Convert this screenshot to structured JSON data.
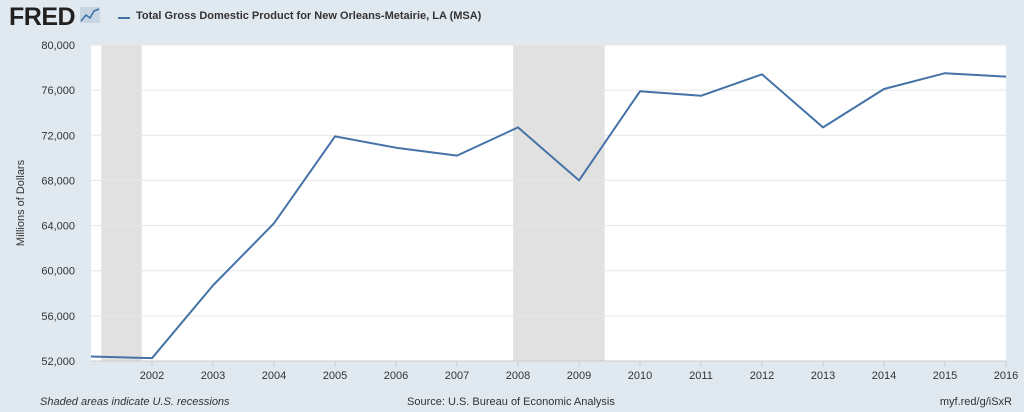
{
  "header": {
    "logo_text": "FRED",
    "logo_icon": "fred-graph-icon"
  },
  "colors": {
    "background": "#e1e9f0",
    "plot_background": "#ffffff",
    "series": "#4572a7",
    "recession": "#e1e1e1",
    "grid": "#e6e6e6",
    "text": "#333333"
  },
  "chart_data": {
    "type": "line",
    "title": "",
    "xlabel": "",
    "ylabel": "Millions of Dollars",
    "ylim": [
      52000,
      80000
    ],
    "yticks": [
      52000,
      56000,
      60000,
      64000,
      68000,
      72000,
      76000,
      80000
    ],
    "ytick_labels": [
      "52,000",
      "56,000",
      "60,000",
      "64,000",
      "68,000",
      "72,000",
      "76,000",
      "80,000"
    ],
    "xlim": [
      2001,
      2016
    ],
    "xticks": [
      2002,
      2003,
      2004,
      2005,
      2006,
      2007,
      2008,
      2009,
      2010,
      2011,
      2012,
      2013,
      2014,
      2015,
      2016
    ],
    "xtick_labels": [
      "2002",
      "2003",
      "2004",
      "2005",
      "2006",
      "2007",
      "2008",
      "2009",
      "2010",
      "2011",
      "2012",
      "2013",
      "2014",
      "2015",
      "2016"
    ],
    "grid": true,
    "legend_position": "top-left",
    "series": [
      {
        "name": "Total Gross Domestic Product for New Orleans-Metairie, LA (MSA)",
        "color": "#4572a7",
        "x": [
          2001,
          2002,
          2003,
          2004,
          2005,
          2006,
          2007,
          2008,
          2009,
          2010,
          2011,
          2012,
          2013,
          2014,
          2015,
          2016
        ],
        "values": [
          52400,
          52250,
          58700,
          64200,
          71900,
          70900,
          70200,
          72700,
          68000,
          75900,
          75500,
          77400,
          72700,
          76100,
          77500,
          77200
        ]
      }
    ],
    "recessions": [
      {
        "start": 2001.17,
        "end": 2001.83
      },
      {
        "start": 2007.92,
        "end": 2009.42
      }
    ]
  },
  "footer": {
    "note": "Shaded areas indicate U.S. recessions",
    "source": "Source: U.S. Bureau of Economic Analysis",
    "link": "myf.red/g/iSxR"
  }
}
